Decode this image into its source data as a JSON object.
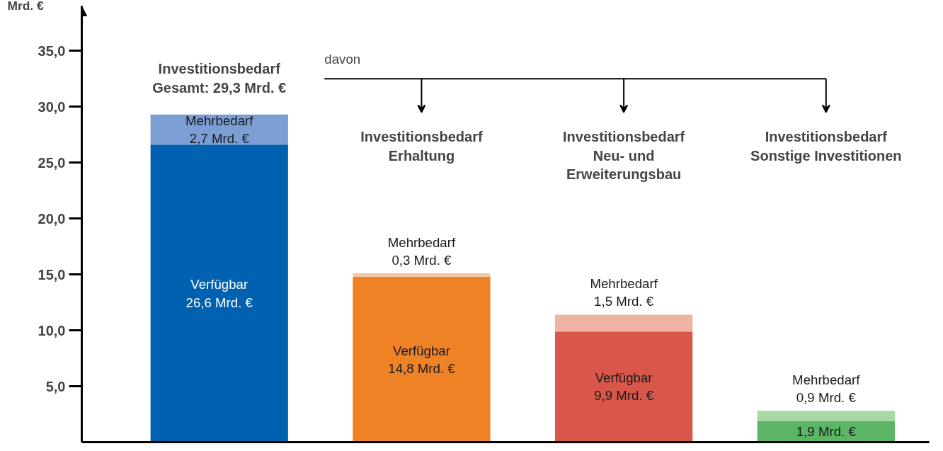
{
  "chart_data": {
    "type": "bar",
    "stacked": true,
    "categories": [
      null,
      null,
      null,
      null
    ],
    "ylabel": "Mrd. €",
    "ylim": [
      0,
      39
    ],
    "yticks": [
      {
        "value": 5,
        "label": "5,0"
      },
      {
        "value": 10,
        "label": "10,0"
      },
      {
        "value": 15,
        "label": "15,0"
      },
      {
        "value": 20,
        "label": "20,0"
      },
      {
        "value": 25,
        "label": "25,0"
      },
      {
        "value": 30,
        "label": "30,0"
      },
      {
        "value": 35,
        "label": "35,0"
      }
    ],
    "grid": false,
    "series": [
      {
        "colors": [
          "#0061b0",
          "#f08226",
          "#d9574a",
          "#5cb567"
        ],
        "values": [
          26.6,
          14.8,
          9.9,
          1.9
        ],
        "value_labels": [
          "Verfügbar\n26,6 Mrd. €",
          "Verfügbar\n14,8 Mrd. €",
          "Verfügbar\n9,9 Mrd. €",
          "1,9 Mrd. €"
        ]
      },
      {
        "colors": [
          "#7b9fd4",
          "#f5c4a5",
          "#eeb3a3",
          "#a9d8a4"
        ],
        "values": [
          2.7,
          0.3,
          1.5,
          0.9
        ],
        "value_labels": [
          "Mehrbedarf\n2,7 Mrd. €",
          "Mehrbedarf\n0,3 Mrd. €",
          "Mehrbedarf\n1,5 Mrd. €",
          "Mehrbedarf\n0,9 Mrd. €"
        ]
      }
    ],
    "annotations": [
      "Investitionsbedarf\nGesamt: 29,3 Mrd. €",
      "davon",
      "Investitionsbedarf\nErhaltung",
      "Investitionsbedarf\nNeu- und\nErweiterungsbau",
      "Investitionsbedarf\nSonstige Investitionen"
    ]
  }
}
